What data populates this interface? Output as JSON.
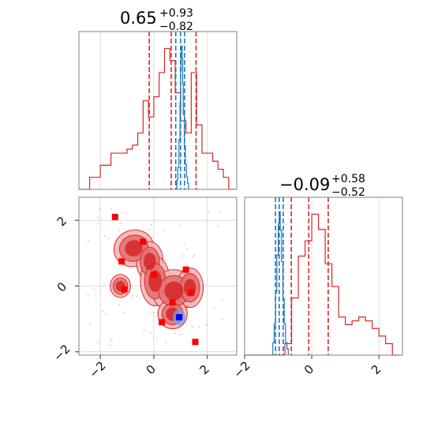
{
  "chart_data": {
    "type": "corner",
    "colors": {
      "red": "#d62728",
      "blue": "#1f77b4",
      "marker_red": "#ff0000",
      "marker_blue": "#0000ff",
      "fill_light": "#f4b8b8",
      "fill_mid": "#e57373",
      "fill_dark": "#d62728"
    },
    "params": [
      {
        "title_value": "0.65",
        "title_plus": "+0.93",
        "title_minus": "−0.82",
        "xlim": [
          -2.8,
          3.1
        ],
        "red_quantiles": [
          -0.17,
          0.65,
          1.58
        ],
        "blue_quantiles": [
          0.82,
          1.0,
          1.15
        ],
        "red_hist": {
          "x": [
            -2.8,
            -2.6,
            -2.4,
            -2.2,
            -2.0,
            -1.8,
            -1.6,
            -1.4,
            -1.2,
            -1.0,
            -0.8,
            -0.6,
            -0.4,
            -0.2,
            0.0,
            0.2,
            0.4,
            0.6,
            0.8,
            1.0,
            1.2,
            1.4,
            1.6,
            1.8,
            2.0,
            2.2,
            2.4,
            2.6,
            2.8,
            3.0
          ],
          "y": [
            0,
            0,
            0.3,
            0.3,
            0.6,
            0.6,
            0.9,
            0.9,
            0.9,
            1.0,
            1.1,
            1.4,
            2.2,
            1.8,
            2.3,
            2.9,
            3.5,
            3.2,
            2.4,
            1.7,
            1.4,
            2.9,
            1.6,
            0.9,
            0.9,
            0.7,
            0.5,
            0.3,
            0,
            0
          ]
        },
        "blue_hist": {
          "x": [
            0.82,
            0.86,
            0.9,
            0.94,
            0.98,
            1.0,
            1.02,
            1.04,
            1.06,
            1.08,
            1.1,
            1.14,
            1.18,
            1.22,
            1.26,
            1.3
          ],
          "y": [
            0,
            1.5,
            3.5,
            8,
            14,
            19,
            22,
            23,
            21,
            17,
            12,
            7,
            4,
            2,
            1,
            0
          ]
        }
      },
      {
        "title_value": "−0.09",
        "title_plus": "+0.58",
        "title_minus": "−0.52",
        "xlim": [
          -2.0,
          2.7
        ],
        "red_quantiles": [
          -0.61,
          -0.09,
          0.49
        ],
        "blue_quantiles": [
          -1.08,
          -0.97,
          -0.85
        ],
        "red_hist": {
          "x": [
            -2.0,
            -1.8,
            -1.6,
            -1.4,
            -1.2,
            -1.0,
            -0.8,
            -0.6,
            -0.4,
            -0.2,
            0.0,
            0.2,
            0.4,
            0.6,
            0.8,
            1.0,
            1.2,
            1.4,
            1.6,
            1.8,
            2.0,
            2.2,
            2.4,
            2.6
          ],
          "y": [
            0,
            0,
            0,
            0,
            0,
            0,
            0.3,
            1.5,
            2.6,
            3.0,
            3.7,
            3.3,
            2.4,
            1.8,
            1.0,
            0.8,
            0.9,
            1.0,
            0.9,
            0.7,
            0.5,
            0.3,
            0,
            0
          ]
        },
        "blue_hist": {
          "x": [
            -1.2,
            -1.16,
            -1.12,
            -1.08,
            -1.04,
            -1.0,
            -0.97,
            -0.94,
            -0.9,
            -0.86,
            -0.82,
            -0.78,
            -0.74,
            -0.7
          ],
          "y": [
            0,
            2,
            5,
            10,
            16,
            21,
            23,
            20,
            15,
            9,
            5,
            2,
            1,
            0
          ]
        }
      }
    ],
    "joint": {
      "xlim": [
        -2.8,
        3.1
      ],
      "ylim": [
        -2.1,
        2.7
      ],
      "xticks": [
        -2,
        0,
        2
      ],
      "yticks": [
        -2,
        0,
        2
      ],
      "xtick_labels": [
        "−2",
        "0",
        "2"
      ],
      "ytick_labels": [
        "−2",
        "0",
        "2"
      ],
      "red_points": [
        [
          -1.45,
          2.1
        ],
        [
          -0.4,
          1.35
        ],
        [
          -1.2,
          0.75
        ],
        [
          -1.1,
          -0.1
        ],
        [
          0.0,
          0.35
        ],
        [
          1.2,
          0.5
        ],
        [
          0.7,
          -0.5
        ],
        [
          1.4,
          -0.2
        ],
        [
          0.3,
          -1.1
        ],
        [
          1.55,
          -1.7
        ]
      ],
      "blue_point": [
        0.95,
        -0.95
      ]
    }
  }
}
